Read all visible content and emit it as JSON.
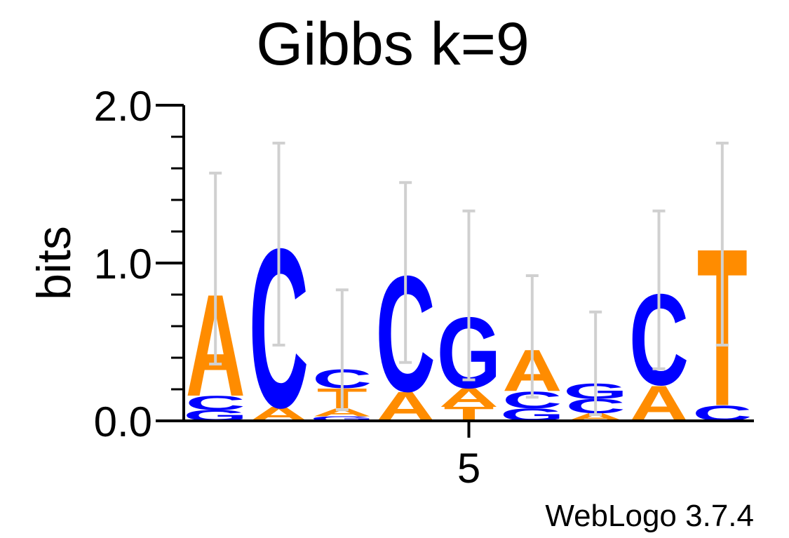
{
  "chart_data": {
    "type": "sequence-logo",
    "title": "Gibbs k=9",
    "ylabel": "bits",
    "xlabel": "",
    "ylim": [
      0,
      2
    ],
    "y_ticks": [
      "0.0",
      "1.0",
      "2.0"
    ],
    "x_ticks": [
      {
        "position": 5,
        "label": "5"
      }
    ],
    "footer": "WebLogo 3.7.4",
    "colors": {
      "A": "#ff8c00",
      "T": "#ff8c00",
      "C": "#0000ff",
      "G": "#0000ff",
      "errorbar": "#d0d0d0",
      "axis": "#000000"
    },
    "positions": [
      {
        "pos": 1,
        "stack": [
          {
            "base": "G",
            "bits": 0.07
          },
          {
            "base": "C",
            "bits": 0.09
          },
          {
            "base": "A",
            "bits": 0.66
          }
        ],
        "err": [
          0.36,
          1.57
        ]
      },
      {
        "pos": 2,
        "stack": [
          {
            "base": "A",
            "bits": 0.09
          },
          {
            "base": "C",
            "bits": 1.03
          }
        ],
        "err": [
          0.48,
          1.76
        ]
      },
      {
        "pos": 3,
        "stack": [
          {
            "base": "G",
            "bits": 0.03
          },
          {
            "base": "A",
            "bits": 0.05
          },
          {
            "base": "T",
            "bits": 0.13
          },
          {
            "base": "C",
            "bits": 0.12
          }
        ],
        "err": [
          0.07,
          0.83
        ]
      },
      {
        "pos": 4,
        "stack": [
          {
            "base": "A",
            "bits": 0.19
          },
          {
            "base": "C",
            "bits": 0.75
          }
        ],
        "err": [
          0.37,
          1.51
        ]
      },
      {
        "pos": 5,
        "stack": [
          {
            "base": "T",
            "bits": 0.09
          },
          {
            "base": "A",
            "bits": 0.12
          },
          {
            "base": "G",
            "bits": 0.46
          }
        ],
        "err": [
          0.26,
          1.33
        ]
      },
      {
        "pos": 6,
        "stack": [
          {
            "base": "G",
            "bits": 0.08
          },
          {
            "base": "C",
            "bits": 0.11
          },
          {
            "base": "A",
            "bits": 0.27
          }
        ],
        "err": [
          0.15,
          0.92
        ]
      },
      {
        "pos": 7,
        "stack": [
          {
            "base": "A",
            "bits": 0.05
          },
          {
            "base": "C",
            "bits": 0.09
          },
          {
            "base": "G",
            "bits": 0.1
          }
        ],
        "err": [
          0.04,
          0.69
        ]
      },
      {
        "pos": 8,
        "stack": [
          {
            "base": "A",
            "bits": 0.23
          },
          {
            "base": "C",
            "bits": 0.59
          }
        ],
        "err": [
          0.33,
          1.33
        ]
      },
      {
        "pos": 9,
        "stack": [
          {
            "base": "C",
            "bits": 0.1
          },
          {
            "base": "T",
            "bits": 1.02
          }
        ],
        "err": [
          0.48,
          1.76
        ]
      }
    ]
  }
}
